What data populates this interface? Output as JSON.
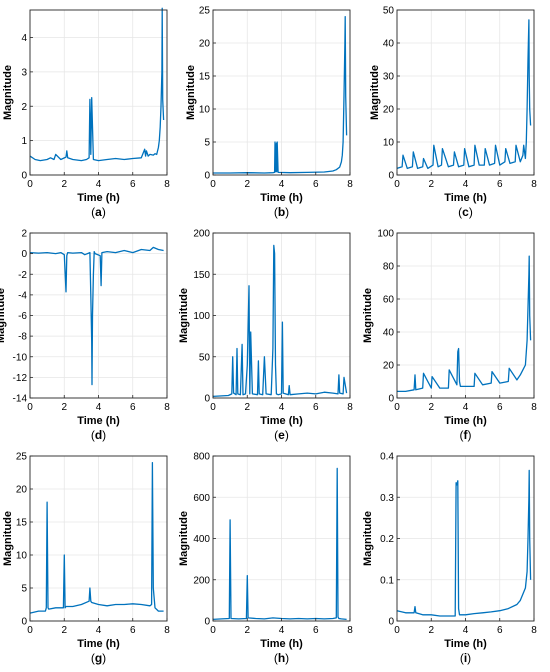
{
  "figure": {
    "colors": {
      "line": "#0072BD",
      "grid": "#e6e6e6",
      "axis": "#262626",
      "text": "#000000"
    }
  },
  "chart_data": [
    {
      "panel_label": "(a)",
      "type": "line",
      "xlabel": "Time (h)",
      "ylabel": "Magnitude",
      "xlim": [
        0,
        8
      ],
      "ylim": [
        0,
        4.8
      ],
      "xticks": [
        "0",
        "2",
        "4",
        "6",
        "8"
      ],
      "yticks": [
        "0",
        "1",
        "2",
        "3",
        "4"
      ],
      "ytick_values": [
        0,
        1,
        2,
        3,
        4
      ],
      "grid": true,
      "series": [
        {
          "x": [
            0,
            0.3,
            0.6,
            1,
            1.2,
            1.4,
            1.5,
            1.8,
            2.1,
            2.15,
            2.2,
            2.5,
            3,
            3.3,
            3.45,
            3.5,
            3.55,
            3.6,
            3.7,
            4,
            4.5,
            5,
            5.5,
            6,
            6.5,
            6.7,
            6.75,
            6.8,
            6.9,
            7,
            7.2,
            7.3,
            7.4,
            7.5,
            7.55,
            7.6,
            7.65,
            7.7,
            7.72,
            7.75,
            7.8
          ],
          "y": [
            0.55,
            0.45,
            0.42,
            0.45,
            0.5,
            0.45,
            0.6,
            0.45,
            0.52,
            0.7,
            0.5,
            0.45,
            0.42,
            0.45,
            0.5,
            2.2,
            0.6,
            2.25,
            0.45,
            0.42,
            0.45,
            0.48,
            0.45,
            0.48,
            0.5,
            0.75,
            0.55,
            0.7,
            0.55,
            0.6,
            0.58,
            0.62,
            0.6,
            0.8,
            1.0,
            1.4,
            2.0,
            3.0,
            4.85,
            2.2,
            1.6
          ]
        }
      ]
    },
    {
      "panel_label": "(b)",
      "type": "line",
      "xlabel": "Time (h)",
      "ylabel": "Magnitude",
      "xlim": [
        0,
        8
      ],
      "ylim": [
        0,
        25
      ],
      "xticks": [
        "0",
        "2",
        "4",
        "6",
        "8"
      ],
      "yticks": [
        "0",
        "5",
        "10",
        "15",
        "20",
        "25"
      ],
      "ytick_values": [
        0,
        5,
        10,
        15,
        20,
        25
      ],
      "grid": true,
      "series": [
        {
          "x": [
            0,
            1,
            2,
            3,
            3.5,
            3.6,
            3.62,
            3.65,
            3.7,
            3.72,
            3.75,
            3.8,
            4.5,
            5.5,
            6.5,
            7,
            7.2,
            7.4,
            7.5,
            7.55,
            7.6,
            7.65,
            7.7,
            7.72,
            7.75,
            7.8
          ],
          "y": [
            0.3,
            0.3,
            0.35,
            0.3,
            0.35,
            0.4,
            5.0,
            0.5,
            4.8,
            0.5,
            5.0,
            0.4,
            0.35,
            0.4,
            0.45,
            0.6,
            0.8,
            1.2,
            2.0,
            3.0,
            5.0,
            12,
            20,
            24,
            12,
            6
          ]
        }
      ]
    },
    {
      "panel_label": "(c)",
      "type": "line",
      "xlabel": "Time (h)",
      "ylabel": "Magnitude",
      "xlim": [
        0,
        8
      ],
      "ylim": [
        0,
        50
      ],
      "xticks": [
        "0",
        "2",
        "4",
        "6",
        "8"
      ],
      "yticks": [
        "0",
        "10",
        "20",
        "30",
        "40",
        "50"
      ],
      "ytick_values": [
        0,
        10,
        20,
        30,
        40,
        50
      ],
      "grid": true,
      "series": [
        {
          "x": [
            0,
            0.3,
            0.35,
            0.6,
            0.9,
            0.95,
            1.2,
            1.5,
            1.55,
            1.8,
            2.1,
            2.15,
            2.4,
            2.6,
            2.65,
            3,
            3.3,
            3.35,
            3.6,
            3.9,
            3.95,
            4.2,
            4.5,
            4.55,
            4.8,
            5.1,
            5.15,
            5.4,
            5.7,
            5.75,
            6,
            6.3,
            6.35,
            6.6,
            6.9,
            6.95,
            7.2,
            7.35,
            7.4,
            7.5,
            7.55,
            7.6,
            7.65,
            7.7,
            7.72,
            7.75,
            7.8
          ],
          "y": [
            2,
            2.5,
            6,
            2,
            2.5,
            7,
            2,
            2.5,
            5,
            2,
            3,
            9,
            2.5,
            3,
            8,
            2.5,
            3,
            7,
            2.5,
            3,
            8,
            2.5,
            3,
            9,
            3,
            3,
            8,
            3,
            3.5,
            9,
            3,
            4,
            8,
            3.5,
            4,
            9,
            4,
            6,
            9,
            5,
            10,
            20,
            35,
            47,
            30,
            20,
            15
          ]
        }
      ]
    },
    {
      "panel_label": "(d)",
      "type": "line",
      "xlabel": "Time (h)",
      "ylabel": "Magnitude",
      "xlim": [
        0,
        8
      ],
      "ylim": [
        -14,
        2
      ],
      "xticks": [
        "0",
        "2",
        "4",
        "6",
        "8"
      ],
      "yticks": [
        "-14",
        "-12",
        "-10",
        "-8",
        "-6",
        "-4",
        "-2",
        "0",
        "2"
      ],
      "ytick_values": [
        -14,
        -12,
        -10,
        -8,
        -6,
        -4,
        -2,
        0,
        2
      ],
      "grid": true,
      "series": [
        {
          "x": [
            0,
            0.5,
            1,
            1.5,
            1.8,
            2,
            2.1,
            2.15,
            2.2,
            2.5,
            3,
            3.2,
            3.5,
            3.55,
            3.6,
            3.62,
            3.65,
            3.7,
            3.75,
            3.8,
            4.1,
            4.15,
            4.2,
            4.5,
            5,
            5.5,
            6,
            6.5,
            7,
            7.2,
            7.5,
            7.8
          ],
          "y": [
            0.1,
            0.05,
            0.1,
            0.0,
            0.1,
            -0.1,
            -3.7,
            -0.2,
            0.1,
            0.05,
            0.1,
            -0.1,
            0.1,
            -4,
            -8.5,
            -12.7,
            -6,
            -2,
            0.2,
            0.0,
            -0.2,
            -3.1,
            0.1,
            0.2,
            0.1,
            0.3,
            0.1,
            0.4,
            0.3,
            0.6,
            0.4,
            0.3
          ]
        }
      ]
    },
    {
      "panel_label": "(e)",
      "type": "line",
      "xlabel": "Time (h)",
      "ylabel": "Magnitude",
      "xlim": [
        0,
        8
      ],
      "ylim": [
        0,
        200
      ],
      "xticks": [
        "0",
        "2",
        "4",
        "6",
        "8"
      ],
      "yticks": [
        "0",
        "50",
        "100",
        "150",
        "200"
      ],
      "ytick_values": [
        0,
        50,
        100,
        150,
        200
      ],
      "grid": true,
      "series": [
        {
          "x": [
            0,
            0.9,
            1.1,
            1.15,
            1.2,
            1.35,
            1.4,
            1.45,
            1.6,
            1.7,
            1.75,
            1.9,
            2.0,
            2.1,
            2.15,
            2.2,
            2.3,
            2.6,
            2.65,
            2.7,
            2.9,
            3.0,
            3.1,
            3.4,
            3.5,
            3.55,
            3.6,
            3.65,
            3.7,
            3.8,
            4.0,
            4.05,
            4.1,
            4.4,
            4.45,
            4.5,
            5,
            5.5,
            6,
            6.5,
            7,
            7.3,
            7.35,
            7.4,
            7.6,
            7.65,
            7.8
          ],
          "y": [
            2,
            3,
            5,
            50,
            6,
            4,
            60,
            5,
            4,
            65,
            4,
            5,
            40,
            136,
            5,
            80,
            5,
            4,
            45,
            5,
            4,
            50,
            5,
            4,
            60,
            185,
            175,
            40,
            5,
            4,
            5,
            92,
            6,
            4,
            15,
            4,
            5,
            6,
            5,
            7,
            6,
            5,
            28,
            6,
            5,
            25,
            6
          ]
        }
      ]
    },
    {
      "panel_label": "(f)",
      "type": "line",
      "xlabel": "Time (h)",
      "ylabel": "Magnitude",
      "xlim": [
        0,
        8
      ],
      "ylim": [
        0,
        100
      ],
      "xticks": [
        "0",
        "2",
        "4",
        "6",
        "8"
      ],
      "yticks": [
        "0",
        "20",
        "40",
        "60",
        "80",
        "100"
      ],
      "ytick_values": [
        0,
        20,
        40,
        60,
        80,
        100
      ],
      "grid": true,
      "series": [
        {
          "x": [
            0,
            0.5,
            1,
            1.05,
            1.1,
            1.5,
            1.55,
            2,
            2.05,
            2.5,
            3,
            3.05,
            3.5,
            3.55,
            3.6,
            3.65,
            3.7,
            4,
            4.5,
            4.55,
            5,
            5.5,
            5.55,
            6,
            6.5,
            6.55,
            7,
            7.2,
            7.4,
            7.5,
            7.6,
            7.65,
            7.7,
            7.72,
            7.75,
            7.8
          ],
          "y": [
            4,
            4,
            5,
            14,
            5,
            6,
            15,
            6,
            13,
            6,
            6,
            17,
            8,
            28,
            30,
            10,
            7,
            7,
            7,
            15,
            8,
            9,
            16,
            9,
            10,
            18,
            11,
            14,
            18,
            20,
            35,
            55,
            75,
            86,
            50,
            35
          ]
        }
      ]
    },
    {
      "panel_label": "(g)",
      "type": "line",
      "xlabel": "Time (h)",
      "ylabel": "Magnitude",
      "xlim": [
        0,
        8
      ],
      "ylim": [
        0,
        25
      ],
      "xticks": [
        "0",
        "2",
        "4",
        "6",
        "8"
      ],
      "yticks": [
        "0",
        "5",
        "10",
        "15",
        "20",
        "25"
      ],
      "ytick_values": [
        0,
        5,
        10,
        15,
        20,
        25
      ],
      "grid": true,
      "series": [
        {
          "x": [
            0,
            0.5,
            0.9,
            0.95,
            1.0,
            1.05,
            1.1,
            1.5,
            1.95,
            2.0,
            2.05,
            2.1,
            2.5,
            3.0,
            3.45,
            3.5,
            3.55,
            3.6,
            4.0,
            4.5,
            5.0,
            5.5,
            6.0,
            6.5,
            7.0,
            7.1,
            7.15,
            7.2,
            7.3,
            7.5,
            7.8
          ],
          "y": [
            1.2,
            1.5,
            1.5,
            2,
            18,
            2,
            1.8,
            2,
            2,
            10,
            2,
            2.2,
            2.2,
            2.5,
            3,
            5,
            3,
            2.8,
            2.5,
            2.3,
            2.5,
            2.5,
            2.6,
            2.5,
            2.3,
            2.5,
            24,
            5,
            2,
            1.5,
            1.5
          ]
        }
      ]
    },
    {
      "panel_label": "(h)",
      "type": "line",
      "xlabel": "Time (h)",
      "ylabel": "Magnitude",
      "xlim": [
        0,
        8
      ],
      "ylim": [
        0,
        800
      ],
      "xticks": [
        "0",
        "2",
        "4",
        "6",
        "8"
      ],
      "yticks": [
        "0",
        "200",
        "400",
        "600",
        "800"
      ],
      "ytick_values": [
        0,
        200,
        400,
        600,
        800
      ],
      "grid": true,
      "series": [
        {
          "x": [
            0,
            0.5,
            0.95,
            1.0,
            1.05,
            1.5,
            1.95,
            2.0,
            2.05,
            2.5,
            3,
            3.5,
            4,
            4.5,
            5,
            5.5,
            6,
            6.5,
            7.0,
            7.2,
            7.25,
            7.3,
            7.35,
            7.5,
            7.8
          ],
          "y": [
            8,
            10,
            12,
            490,
            12,
            10,
            12,
            220,
            15,
            12,
            10,
            15,
            12,
            10,
            12,
            10,
            12,
            10,
            12,
            15,
            740,
            20,
            12,
            10,
            8
          ]
        }
      ]
    },
    {
      "panel_label": "(i)",
      "type": "line",
      "xlabel": "Time (h)",
      "ylabel": "Magnitude",
      "xlim": [
        0,
        8
      ],
      "ylim": [
        0,
        0.4
      ],
      "xticks": [
        "0",
        "2",
        "4",
        "6",
        "8"
      ],
      "yticks": [
        "0",
        "0.1",
        "0.2",
        "0.3",
        "0.4"
      ],
      "ytick_values": [
        0,
        0.1,
        0.2,
        0.3,
        0.4
      ],
      "grid": true,
      "series": [
        {
          "x": [
            0,
            0.5,
            1.0,
            1.05,
            1.1,
            1.5,
            2,
            2.5,
            3,
            3.4,
            3.45,
            3.5,
            3.55,
            3.6,
            3.65,
            4,
            4.5,
            5,
            5.5,
            6,
            6.5,
            7,
            7.2,
            7.4,
            7.5,
            7.6,
            7.65,
            7.7,
            7.72,
            7.75,
            7.8
          ],
          "y": [
            0.025,
            0.02,
            0.02,
            0.035,
            0.02,
            0.015,
            0.015,
            0.012,
            0.012,
            0.012,
            0.335,
            0.33,
            0.34,
            0.03,
            0.015,
            0.015,
            0.018,
            0.02,
            0.022,
            0.025,
            0.03,
            0.04,
            0.05,
            0.07,
            0.08,
            0.12,
            0.2,
            0.3,
            0.365,
            0.2,
            0.1
          ]
        }
      ]
    }
  ]
}
